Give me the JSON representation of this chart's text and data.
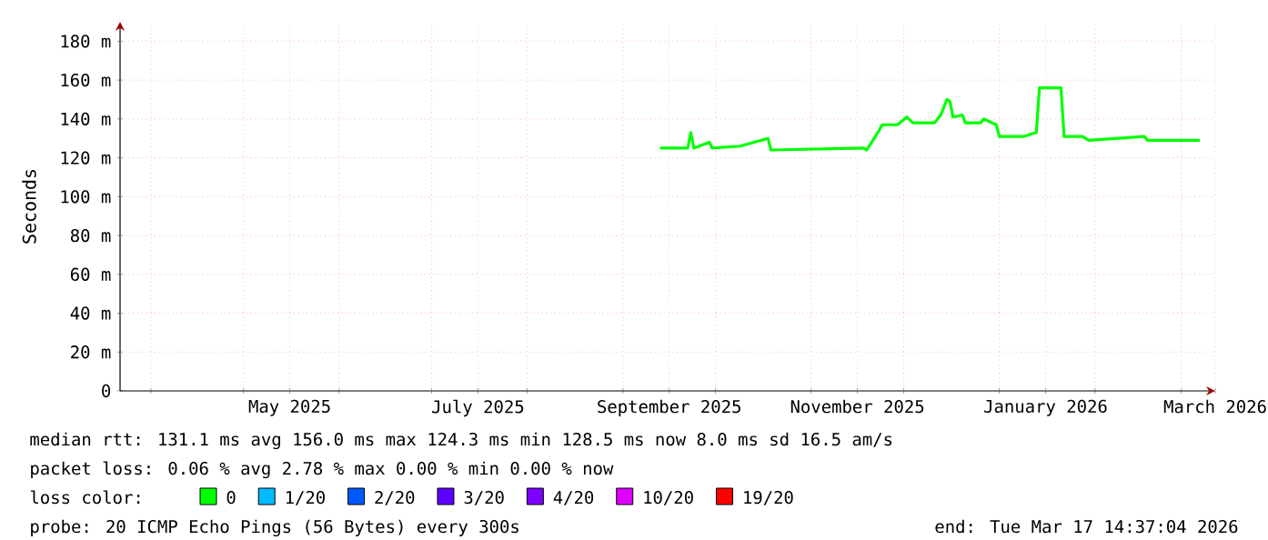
{
  "chart_data": {
    "type": "line",
    "ylabel": "Seconds",
    "legend_title": "loss color:",
    "legend": "bottom",
    "grid": true,
    "xlim": [
      "2025-03-22",
      "2026-03-12"
    ],
    "ylim": [
      0,
      190
    ],
    "yticks": [
      0,
      {
        "value": 20,
        "label": "20 m"
      },
      {
        "value": 40,
        "label": "40 m"
      },
      {
        "value": 60,
        "label": "60 m"
      },
      {
        "value": 80,
        "label": "80 m"
      },
      {
        "value": 100,
        "label": "100 m"
      },
      {
        "value": 120,
        "label": "120 m"
      },
      {
        "value": 140,
        "label": "140 m"
      },
      {
        "value": 160,
        "label": "160 m"
      },
      {
        "value": 180,
        "label": "180 m"
      }
    ],
    "xticks": [
      {
        "value": "2025-04-01",
        "label": null
      },
      {
        "value": "2025-05-01",
        "label": null
      },
      {
        "value": "2025-05-16",
        "label": "May 2025"
      },
      {
        "value": "2025-06-01",
        "label": null
      },
      {
        "value": "2025-07-01",
        "label": null
      },
      {
        "value": "2025-07-16",
        "label": "July 2025"
      },
      {
        "value": "2025-08-01",
        "label": null
      },
      {
        "value": "2025-09-01",
        "label": null
      },
      {
        "value": "2025-09-16",
        "label": "September 2025"
      },
      {
        "value": "2025-10-01",
        "label": null
      },
      {
        "value": "2025-11-01",
        "label": null
      },
      {
        "value": "2025-11-16",
        "label": "November 2025"
      },
      {
        "value": "2025-12-01",
        "label": null
      },
      {
        "value": "2026-01-01",
        "label": null
      },
      {
        "value": "2026-01-16",
        "label": "January 2026"
      },
      {
        "value": "2026-02-01",
        "label": null
      },
      {
        "value": "2026-03-01",
        "label": null
      },
      {
        "value": "2026-03-12",
        "label": "March 2026"
      }
    ],
    "x": [
      "2025-09-13",
      "2025-09-22",
      "2025-09-23",
      "2025-09-24",
      "2025-09-29",
      "2025-09-30",
      "2025-10-09",
      "2025-10-18",
      "2025-10-19",
      "2025-11-18",
      "2025-11-19",
      "2025-11-23",
      "2025-11-24",
      "2025-11-29",
      "2025-12-02",
      "2025-12-04",
      "2025-12-11",
      "2025-12-13",
      "2025-12-15",
      "2025-12-16",
      "2025-12-17",
      "2025-12-20",
      "2025-12-21",
      "2025-12-26",
      "2025-12-27",
      "2025-12-31",
      "2026-01-01",
      "2026-01-09",
      "2026-01-13",
      "2026-01-14",
      "2026-01-21",
      "2026-01-22",
      "2026-01-28",
      "2026-01-30",
      "2026-02-17",
      "2026-02-18",
      "2026-03-07"
    ],
    "series": [
      {
        "name": "0",
        "color": "#00ff00",
        "values": [
          125,
          125,
          133,
          125,
          128,
          125,
          126,
          130,
          124,
          125,
          124,
          134,
          137,
          137,
          141,
          138,
          138,
          142,
          150,
          149,
          141,
          142,
          138,
          138,
          140,
          137,
          131,
          131,
          133,
          156,
          156,
          131,
          131,
          129,
          131,
          129,
          129
        ]
      },
      {
        "name": "1/20",
        "color": "#00bbff",
        "values": [
          null,
          null,
          null,
          null,
          null,
          null,
          null,
          null,
          null,
          null,
          null,
          null,
          null,
          null,
          null,
          null,
          null,
          null,
          null,
          null,
          null,
          null,
          null,
          null,
          null,
          null,
          null,
          null,
          null,
          null,
          null,
          null,
          null,
          null,
          null,
          null,
          null
        ]
      },
      {
        "name": "2/20",
        "color": "#0059ff",
        "values": [
          null,
          null,
          null,
          null,
          null,
          null,
          null,
          null,
          null,
          null,
          null,
          null,
          null,
          null,
          null,
          null,
          null,
          null,
          null,
          null,
          null,
          null,
          null,
          null,
          null,
          null,
          null,
          null,
          null,
          null,
          null,
          null,
          null,
          null,
          null,
          null,
          null
        ]
      },
      {
        "name": "3/20",
        "color": "#5e00ff",
        "values": [
          null,
          null,
          null,
          null,
          null,
          null,
          null,
          null,
          null,
          null,
          null,
          null,
          null,
          null,
          null,
          null,
          null,
          null,
          null,
          null,
          null,
          null,
          null,
          null,
          null,
          null,
          null,
          null,
          null,
          null,
          null,
          null,
          null,
          null,
          null,
          null,
          null
        ]
      },
      {
        "name": "4/20",
        "color": "#7e00ff",
        "values": [
          null,
          null,
          null,
          null,
          null,
          null,
          null,
          null,
          null,
          null,
          null,
          null,
          null,
          null,
          null,
          null,
          null,
          null,
          null,
          null,
          null,
          null,
          null,
          null,
          null,
          null,
          null,
          null,
          null,
          null,
          null,
          null,
          null,
          null,
          null,
          null,
          null
        ]
      },
      {
        "name": "10/20",
        "color": "#dd00ff",
        "values": [
          null,
          null,
          null,
          null,
          null,
          null,
          null,
          null,
          null,
          null,
          null,
          null,
          null,
          null,
          null,
          null,
          null,
          null,
          null,
          null,
          null,
          null,
          null,
          null,
          null,
          null,
          null,
          null,
          null,
          null,
          null,
          null,
          null,
          null,
          null,
          null,
          null
        ]
      },
      {
        "name": "19/20",
        "color": "#ff0000",
        "values": [
          null,
          null,
          null,
          null,
          null,
          null,
          null,
          null,
          null,
          null,
          null,
          null,
          null,
          null,
          null,
          null,
          null,
          null,
          null,
          null,
          null,
          null,
          null,
          null,
          null,
          null,
          null,
          null,
          null,
          null,
          null,
          null,
          null,
          null,
          null,
          null,
          null
        ]
      }
    ],
    "annotations": [
      "median rtt:  131.1 ms avg  156.0 ms max  124.3 ms min  128.5 ms now  8.0 ms sd  16.5   am/s",
      "packet loss: 0.06 % avg  2.78 % max  0.00 % min  0.00 % now",
      "probe:       20 ICMP Echo Pings (56 Bytes) every 300s",
      "end: Tue Mar 17 14:37:04 2026"
    ]
  }
}
